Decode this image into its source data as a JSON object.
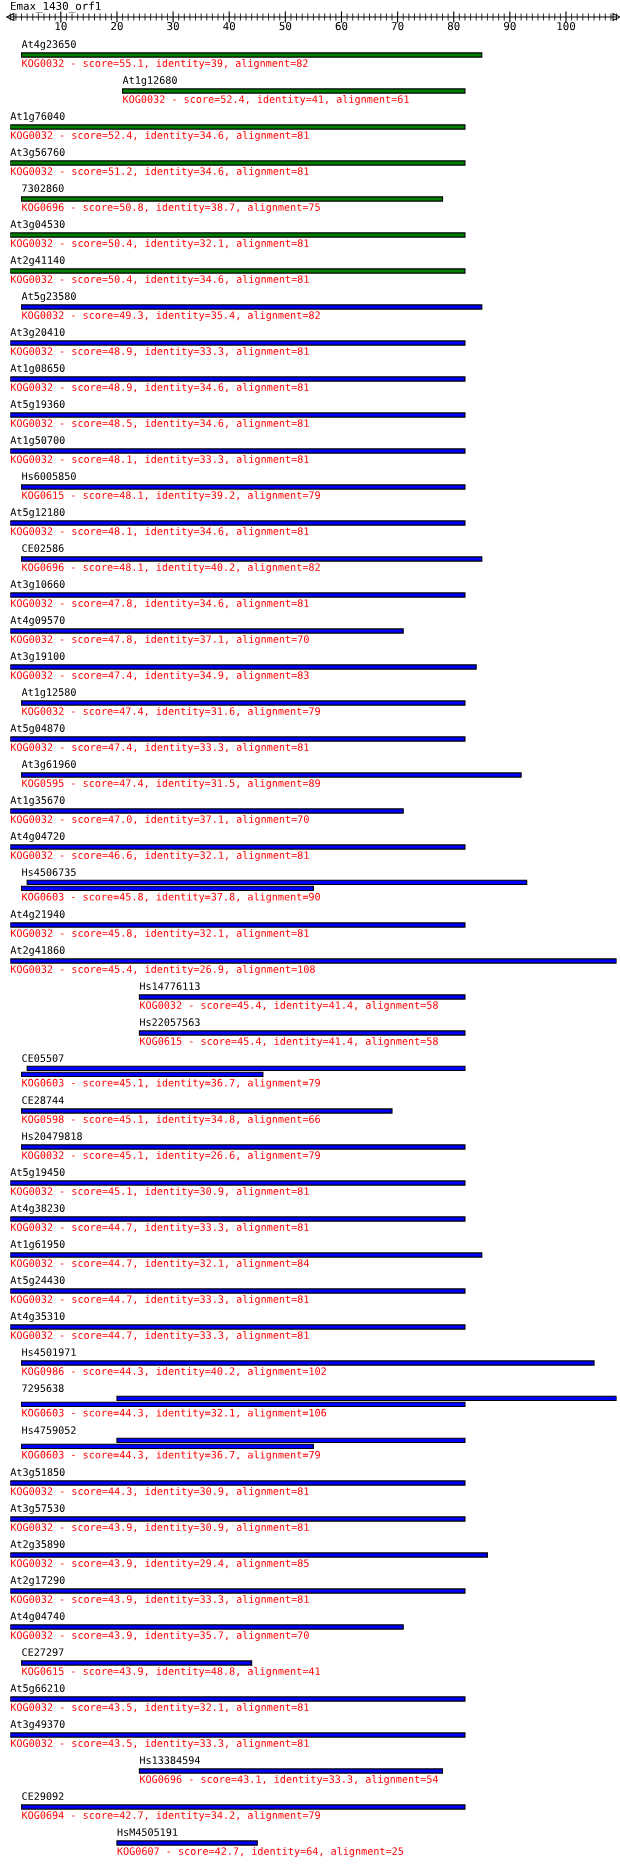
{
  "chart_data": {
    "type": "bar",
    "orientation": "horizontal",
    "title": "Emax_1430_orf1",
    "categories": [
      "At4g23650",
      "At1g12680",
      "At1g76040",
      "At3g56760",
      "7302860",
      "At3g04530",
      "At2g41140",
      "At5g23580",
      "At3g20410",
      "At1g08650",
      "At5g19360",
      "At1g50700",
      "Hs6005850",
      "At5g12180",
      "CE02586",
      "At3g10660",
      "At4g09570",
      "At3g19100",
      "At1g12580",
      "At5g04870",
      "At3g61960",
      "At1g35670",
      "At4g04720",
      "Hs4506735",
      "At4g21940",
      "At2g41860",
      "Hs14776113",
      "Hs22057563",
      "CE05507",
      "CE28744",
      "Hs20479818",
      "At5g19450",
      "At4g38230",
      "At1g61950",
      "At5g24430",
      "At4g35310",
      "Hs4501971",
      "7295638",
      "Hs4759052",
      "At3g51850",
      "At3g57530",
      "At2g35890",
      "At2g17290",
      "At4g04740",
      "CE27297",
      "At5g66210",
      "At3g49370",
      "Hs13384594",
      "CE29092",
      "HsM4505191"
    ],
    "series": [
      {
        "color": "#0000ff",
        "colors": [
          "#008000",
          "#008000",
          "#008000",
          "#008000",
          "#008000",
          "#008000",
          "#008000",
          "#0000ff",
          "#0000ff",
          "#0000ff",
          "#0000ff",
          "#0000ff",
          "#0000ff",
          "#0000ff",
          "#0000ff",
          "#0000ff",
          "#0000ff",
          "#0000ff",
          "#0000ff",
          "#0000ff",
          "#0000ff",
          "#0000ff",
          "#0000ff",
          "#0000ff",
          "#0000ff",
          "#0000ff",
          "#0000ff",
          "#0000ff",
          "#0000ff",
          "#0000ff",
          "#0000ff",
          "#0000ff",
          "#0000ff",
          "#0000ff",
          "#0000ff",
          "#0000ff",
          "#0000ff",
          "#0000ff",
          "#0000ff",
          "#0000ff",
          "#0000ff",
          "#0000ff",
          "#0000ff",
          "#0000ff",
          "#0000ff",
          "#0000ff",
          "#0000ff",
          "#0000ff",
          "#0000ff",
          "#0000ff"
        ],
        "base": [
          3,
          21,
          1,
          1,
          3,
          1,
          1,
          3,
          1,
          1,
          1,
          1,
          3,
          1,
          3,
          1,
          1,
          1,
          3,
          1,
          3,
          1,
          1,
          4,
          1,
          1,
          24,
          24,
          4,
          3,
          3,
          1,
          1,
          1,
          1,
          1,
          3,
          20,
          20,
          1,
          1,
          1,
          1,
          1,
          3,
          1,
          1,
          24,
          3,
          20
        ],
        "values": [
          82,
          61,
          81,
          81,
          75,
          81,
          81,
          82,
          81,
          81,
          81,
          81,
          79,
          81,
          82,
          81,
          70,
          83,
          79,
          81,
          89,
          70,
          81,
          89,
          81,
          108,
          58,
          58,
          78,
          66,
          79,
          81,
          81,
          84,
          81,
          81,
          102,
          89,
          62,
          81,
          81,
          85,
          81,
          70,
          41,
          81,
          81,
          54,
          79,
          25
        ]
      },
      {
        "color": "#0000ff",
        "base": [
          null,
          null,
          null,
          null,
          null,
          null,
          null,
          null,
          null,
          null,
          null,
          null,
          null,
          null,
          null,
          null,
          null,
          null,
          null,
          null,
          null,
          null,
          null,
          3,
          null,
          null,
          null,
          null,
          3,
          null,
          null,
          null,
          null,
          null,
          null,
          null,
          null,
          3,
          3,
          null,
          null,
          null,
          null,
          null,
          null,
          null,
          null,
          null,
          null,
          null
        ],
        "values": [
          null,
          null,
          null,
          null,
          null,
          null,
          null,
          null,
          null,
          null,
          null,
          null,
          null,
          null,
          null,
          null,
          null,
          null,
          null,
          null,
          null,
          null,
          null,
          52,
          null,
          null,
          null,
          null,
          43,
          null,
          null,
          null,
          null,
          null,
          null,
          null,
          null,
          79,
          52,
          null,
          null,
          null,
          null,
          null,
          null,
          null,
          null,
          null,
          null,
          null
        ]
      }
    ],
    "annotations": [
      "KOG0032 - score=55.1, identity=39, alignment=82",
      "KOG0032 - score=52.4, identity=41, alignment=61",
      "KOG0032 - score=52.4, identity=34.6, alignment=81",
      "KOG0032 - score=51.2, identity=34.6, alignment=81",
      "KOG0696 - score=50.8, identity=38.7, alignment=75",
      "KOG0032 - score=50.4, identity=32.1, alignment=81",
      "KOG0032 - score=50.4, identity=34.6, alignment=81",
      "KOG0032 - score=49.3, identity=35.4, alignment=82",
      "KOG0032 - score=48.9, identity=33.3, alignment=81",
      "KOG0032 - score=48.9, identity=34.6, alignment=81",
      "KOG0032 - score=48.5, identity=34.6, alignment=81",
      "KOG0032 - score=48.1, identity=33.3, alignment=81",
      "KOG0615 - score=48.1, identity=39.2, alignment=79",
      "KOG0032 - score=48.1, identity=34.6, alignment=81",
      "KOG0696 - score=48.1, identity=40.2, alignment=82",
      "KOG0032 - score=47.8, identity=34.6, alignment=81",
      "KOG0032 - score=47.8, identity=37.1, alignment=70",
      "KOG0032 - score=47.4, identity=34.9, alignment=83",
      "KOG0032 - score=47.4, identity=31.6, alignment=79",
      "KOG0032 - score=47.4, identity=33.3, alignment=81",
      "KOG0595 - score=47.4, identity=31.5, alignment=89",
      "KOG0032 - score=47.0, identity=37.1, alignment=70",
      "KOG0032 - score=46.6, identity=32.1, alignment=81",
      "KOG0603 - score=45.8, identity=37.8, alignment=90",
      "KOG0032 - score=45.8, identity=32.1, alignment=81",
      "KOG0032 - score=45.4, identity=26.9, alignment=108",
      "KOG0032 - score=45.4, identity=41.4, alignment=58",
      "KOG0615 - score=45.4, identity=41.4, alignment=58",
      "KOG0603 - score=45.1, identity=36.7, alignment=79",
      "KOG0598 - score=45.1, identity=34.8, alignment=66",
      "KOG0032 - score=45.1, identity=26.6, alignment=79",
      "KOG0032 - score=45.1, identity=30.9, alignment=81",
      "KOG0032 - score=44.7, identity=33.3, alignment=81",
      "KOG0032 - score=44.7, identity=32.1, alignment=84",
      "KOG0032 - score=44.7, identity=33.3, alignment=81",
      "KOG0032 - score=44.7, identity=33.3, alignment=81",
      "KOG0986 - score=44.3, identity=40.2, alignment=102",
      "KOG0603 - score=44.3, identity=32.1, alignment=106",
      "KOG0603 - score=44.3, identity=36.7, alignment=79",
      "KOG0032 - score=44.3, identity=30.9, alignment=81",
      "KOG0032 - score=43.9, identity=30.9, alignment=81",
      "KOG0032 - score=43.9, identity=29.4, alignment=85",
      "KOG0032 - score=43.9, identity=33.3, alignment=81",
      "KOG0032 - score=43.9, identity=35.7, alignment=70",
      "KOG0615 - score=43.9, identity=48.8, alignment=41",
      "KOG0032 - score=43.5, identity=32.1, alignment=81",
      "KOG0032 - score=43.5, identity=33.3, alignment=81",
      "KOG0696 - score=43.1, identity=33.3, alignment=54",
      "KOG0694 - score=42.7, identity=34.2, alignment=79",
      "KOG0607 - score=42.7, identity=64, alignment=25"
    ],
    "xlim": [
      1,
      109
    ],
    "xticks": [
      10,
      20,
      30,
      40,
      50,
      60,
      70,
      80,
      90,
      100
    ],
    "grid": false,
    "legend": false
  }
}
